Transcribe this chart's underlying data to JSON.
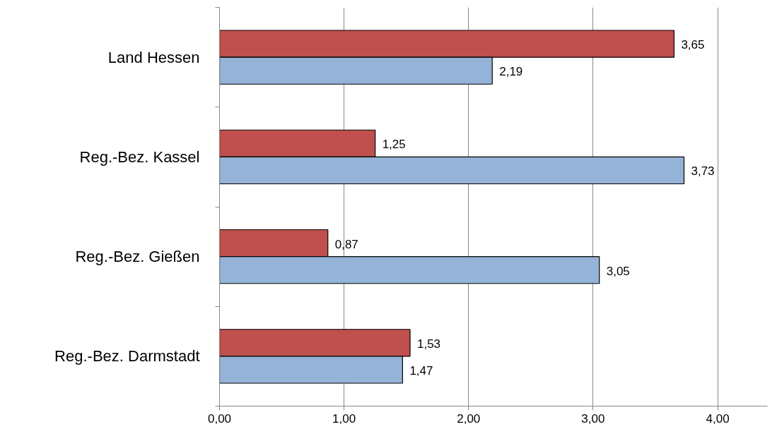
{
  "chart_data": {
    "type": "bar",
    "orientation": "horizontal",
    "categories": [
      "Land Hessen",
      "Reg.-Bez. Kassel",
      "Reg.-Bez. Gießen",
      "Reg.-Bez. Darmstadt"
    ],
    "series": [
      {
        "color": "#c0504d",
        "values": [
          3.65,
          1.25,
          0.87,
          1.53
        ],
        "value_labels": [
          "3,65",
          "1,25",
          "0,87",
          "1,53"
        ]
      },
      {
        "color": "#95b3d7",
        "values": [
          2.19,
          3.73,
          3.05,
          1.47
        ],
        "value_labels": [
          "2,19",
          "3,73",
          "3,05",
          "1,47"
        ]
      }
    ],
    "xlim": [
      0,
      4.4
    ],
    "xticks": [
      {
        "value": 0,
        "label": "0,00"
      },
      {
        "value": 1,
        "label": "1,00"
      },
      {
        "value": 2,
        "label": "2,00"
      },
      {
        "value": 3,
        "label": "3,00"
      },
      {
        "value": 4,
        "label": "4,00"
      }
    ],
    "grid": "x"
  }
}
